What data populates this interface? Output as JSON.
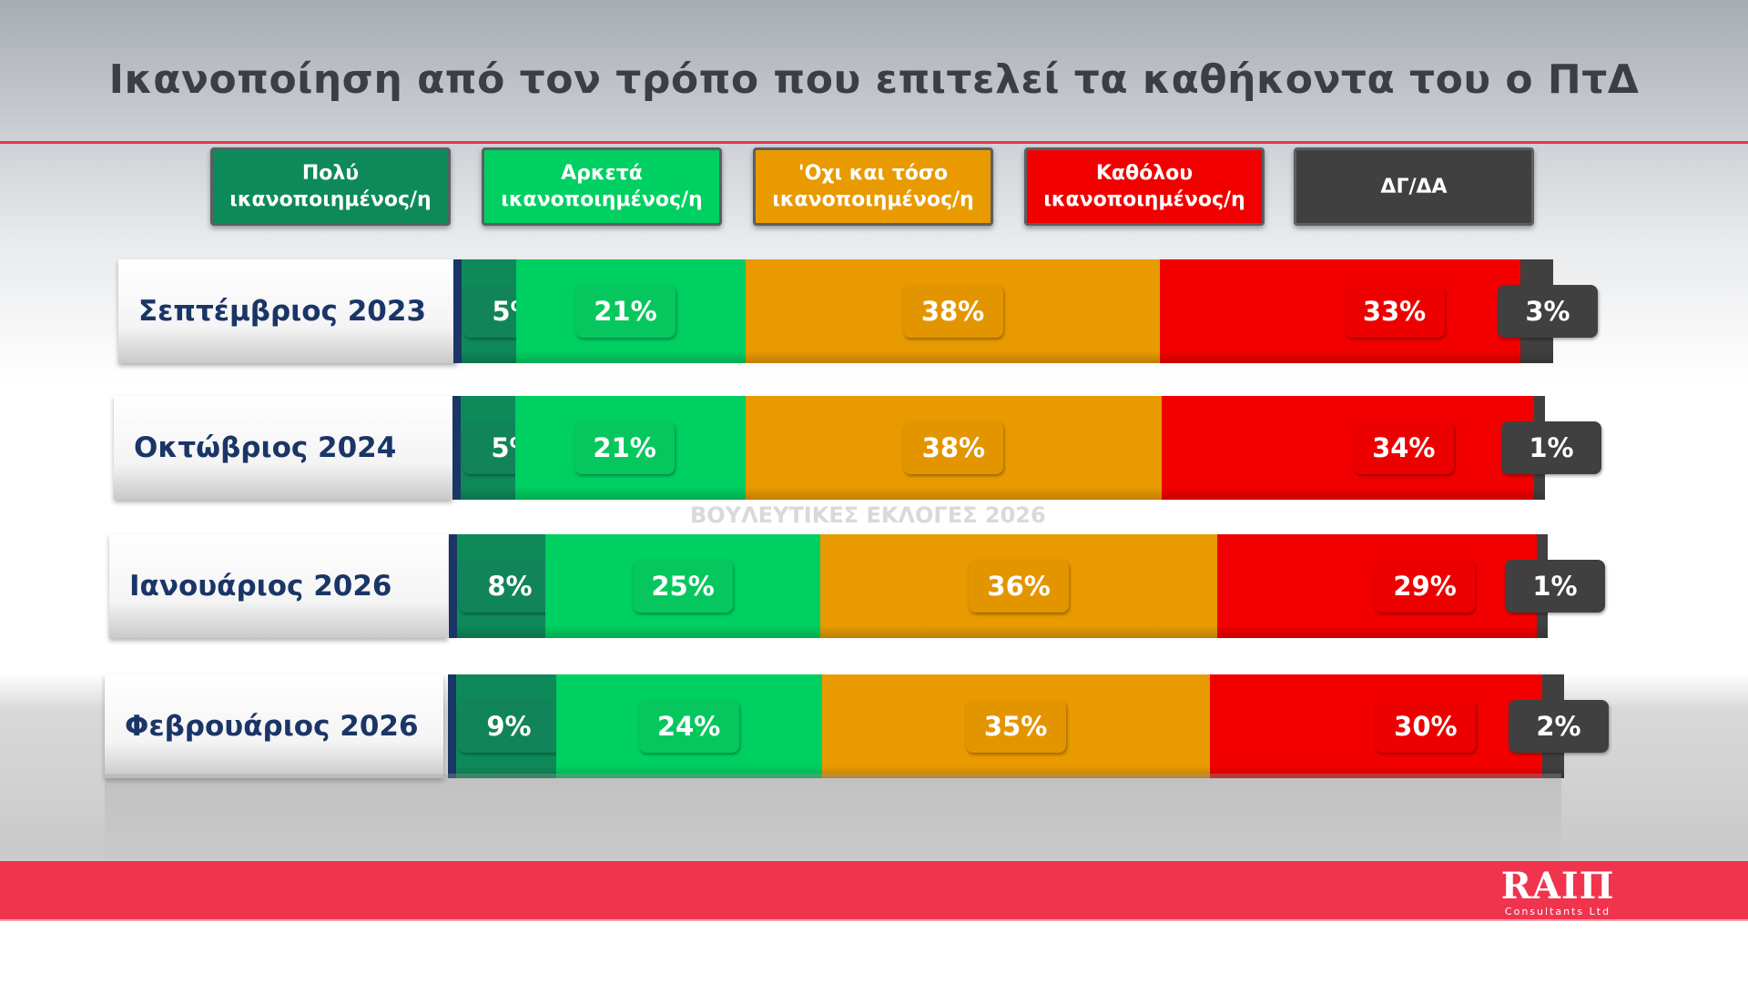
{
  "title": "Ικανοποίηση από τον τρόπο που επιτελεί τα καθήκοντα του ο ΠτΔ",
  "watermark": "ΒΟΥΛΕΥΤΙΚΕΣ ΕΚΛΟΓΕΣ 2026",
  "logo": {
    "main": "RAIΠ",
    "sub": "Consultants Ltd"
  },
  "chart_data": {
    "type": "bar",
    "orientation": "horizontal",
    "stacked": true,
    "title": "Ικανοποίηση από τον τρόπο που επιτελεί τα καθήκοντα του ο ΠτΔ",
    "categories": [
      "Σεπτέμβριος 2023",
      "Οκτώβριος 2024",
      "Ιανουάριος 2026",
      "Φεβρουάριος 2026"
    ],
    "series": [
      {
        "name": "Πολύ ικανοποιημένος/η",
        "legend_lines": [
          "Πολύ",
          "ικανοποιημένος/η"
        ],
        "color": "#0e8a5a",
        "pill": "#11845a",
        "values": [
          5,
          5,
          8,
          9
        ]
      },
      {
        "name": "Αρκετά ικανοποιημένος/η",
        "legend_lines": [
          "Αρκετά",
          "ικανοποιημένος/η"
        ],
        "color": "#00cf62",
        "pill": "#06c75e",
        "values": [
          21,
          21,
          25,
          24
        ]
      },
      {
        "name": "'Οχι και τόσο ικανοποιημένος/η",
        "legend_lines": [
          "'Οχι και τόσο",
          "ικανοποιημένος/η"
        ],
        "color": "#e89a00",
        "pill": "#e39500",
        "values": [
          38,
          38,
          36,
          35
        ]
      },
      {
        "name": "Καθόλου ικανοποιημένος/η",
        "legend_lines": [
          "Καθόλου",
          "ικανοποιημένος/η"
        ],
        "color": "#f20000",
        "pill": "#ec0000",
        "values": [
          33,
          34,
          29,
          30
        ]
      },
      {
        "name": "ΔΓ/ΔΑ",
        "legend_lines": [
          "ΔΓ/ΔΑ"
        ],
        "color": "#404040",
        "pill": "#404040",
        "values": [
          3,
          1,
          1,
          2
        ]
      }
    ],
    "value_suffix": "%",
    "xlim": [
      0,
      100
    ],
    "legend_position": "top"
  }
}
